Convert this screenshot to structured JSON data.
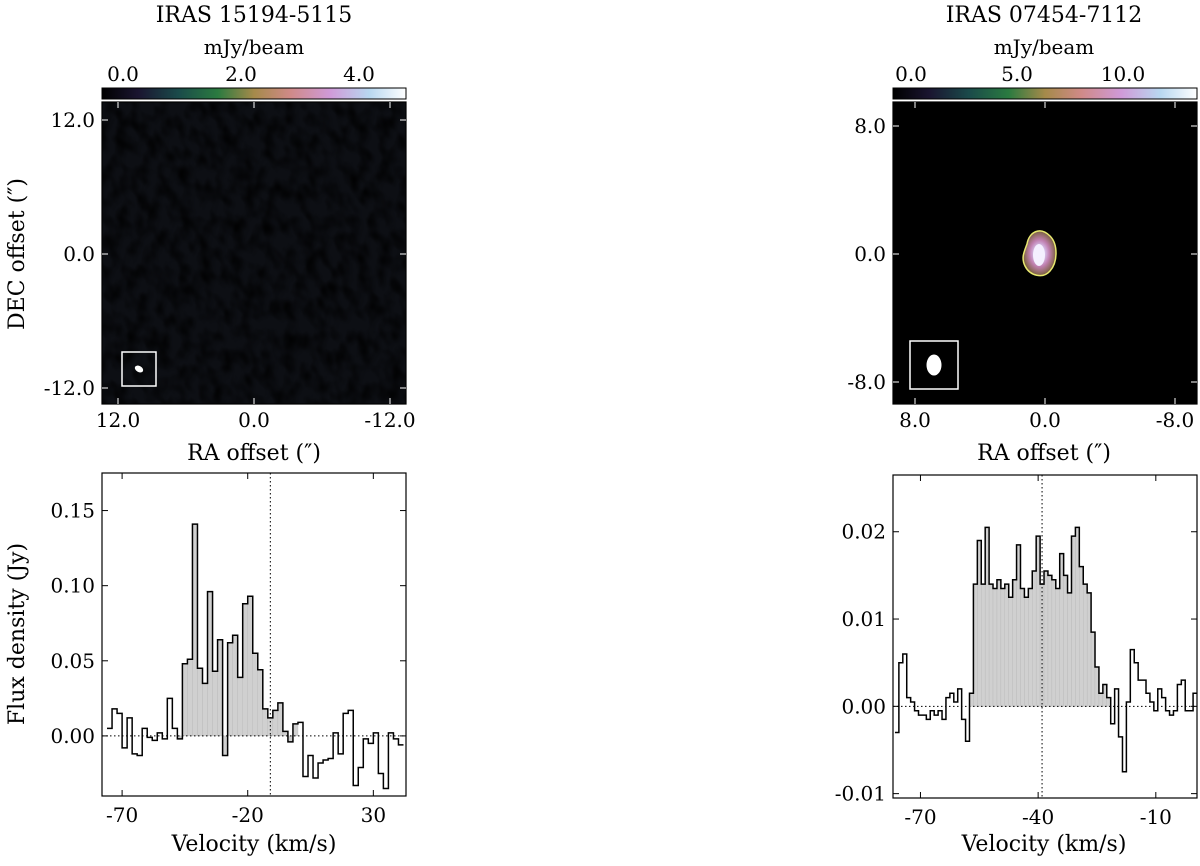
{
  "chart_data": [
    {
      "type": "heatmap",
      "title": "IRAS 15194-5115",
      "colorbar": {
        "label": "mJy/beam",
        "ticks": [
          "0.0",
          "2.0",
          "4.0"
        ],
        "range": [
          0,
          4.8
        ]
      },
      "xlabel": "RA offset (″)",
      "ylabel": "DEC offset (″)",
      "xticks": [
        "12.0",
        "0.0",
        "-12.0"
      ],
      "yticks": [
        "12.0",
        "0.0",
        "-12.0"
      ],
      "xlim": [
        13.5,
        -13.5
      ],
      "ylim": [
        -13.5,
        13.5
      ],
      "colormap": "cubehelix",
      "beam": "white ellipse in white box, bottom-left"
    },
    {
      "type": "heatmap",
      "title": "IRAS 07454-7112",
      "colorbar": {
        "label": "mJy/beam",
        "ticks": [
          "0.0",
          "5.0",
          "10.0"
        ],
        "range": [
          0,
          13.5
        ]
      },
      "xlabel": "RA offset (″)",
      "ylabel": "",
      "xticks": [
        "8.0",
        "0.0",
        "-8.0"
      ],
      "yticks": [
        "8.0",
        "0.0",
        "-8.0"
      ],
      "xlim": [
        9.5,
        -9.5
      ],
      "ylim": [
        -9.5,
        9.5
      ],
      "colormap": "cubehelix",
      "source": {
        "ra": 0.2,
        "dec": 0.0,
        "contour_color": "#e8e870"
      },
      "beam": "white ellipse in white box, bottom-left"
    },
    {
      "type": "line",
      "style": "step",
      "xlabel": "Velocity (km/s)",
      "ylabel": "Flux density (Jy)",
      "xticks": [
        "-70",
        "-20",
        "30"
      ],
      "yticks": [
        "0.00",
        "0.05",
        "0.10",
        "0.15"
      ],
      "xlim": [
        -78,
        43
      ],
      "ylim": [
        -0.04,
        0.175
      ],
      "vline": -11,
      "shade_range": [
        -47,
        -1
      ],
      "x": [
        -75,
        -73,
        -71,
        -69,
        -67,
        -65,
        -63,
        -61,
        -59,
        -57,
        -55,
        -53,
        -51,
        -49,
        -47,
        -45,
        -43,
        -41,
        -39,
        -37,
        -35,
        -33,
        -31,
        -29,
        -27,
        -25,
        -23,
        -21,
        -19,
        -17,
        -15,
        -13,
        -11,
        -9,
        -7,
        -5,
        -3,
        -1,
        1,
        3,
        5,
        7,
        9,
        11,
        13,
        15,
        17,
        19,
        21,
        23,
        25,
        27,
        29,
        31,
        33,
        35,
        37,
        39,
        41
      ],
      "y": [
        0.005,
        0.018,
        0.015,
        -0.008,
        0.012,
        -0.012,
        -0.013,
        0.005,
        -0.001,
        -0.003,
        0.002,
        -0.002,
        0.025,
        0.005,
        -0.002,
        0.048,
        0.051,
        0.141,
        0.045,
        0.035,
        0.096,
        0.043,
        0.064,
        -0.013,
        0.062,
        0.067,
        0.039,
        0.088,
        0.093,
        0.055,
        0.044,
        0.018,
        0.012,
        0.017,
        0.022,
        0.003,
        -0.004,
        0.008,
        0.009,
        -0.027,
        -0.013,
        -0.028,
        -0.018,
        -0.016,
        -0.015,
        0.002,
        -0.012,
        0.015,
        0.017,
        -0.033,
        -0.021,
        -0.002,
        -0.005,
        0.002,
        -0.025,
        -0.035,
        0.002,
        -0.002,
        -0.006
      ]
    },
    {
      "type": "line",
      "style": "step",
      "xlabel": "Velocity (km/s)",
      "ylabel": "",
      "xticks": [
        "-70",
        "-40",
        "-10"
      ],
      "yticks": [
        "-0.01",
        "0.00",
        "0.01",
        "0.02"
      ],
      "xlim": [
        -77,
        0.5
      ],
      "ylim": [
        -0.0105,
        0.0265
      ],
      "vline": -39,
      "shade_range": [
        -57,
        -22
      ],
      "x": [
        -76,
        -75,
        -74,
        -73,
        -72,
        -71,
        -70,
        -69,
        -68,
        -67,
        -66,
        -65,
        -64,
        -63,
        -62,
        -61,
        -60,
        -59,
        -58,
        -57,
        -56,
        -55,
        -54,
        -53,
        -52,
        -51,
        -50,
        -49,
        -48,
        -47,
        -46,
        -45,
        -44,
        -43,
        -42,
        -41,
        -40,
        -39,
        -38,
        -37,
        -36,
        -35,
        -34,
        -33,
        -32,
        -31,
        -30,
        -29,
        -28,
        -27,
        -26,
        -25,
        -24,
        -23,
        -22,
        -21,
        -20,
        -19,
        -18,
        -17,
        -16,
        -15,
        -14,
        -13,
        -12,
        -11,
        -10,
        -9,
        -8,
        -7,
        -6,
        -5,
        -4,
        -3,
        -2,
        -1,
        0
      ],
      "y": [
        -0.003,
        0.005,
        0.006,
        0.001,
        0.0005,
        -0.0005,
        -0.001,
        -0.001,
        -0.0015,
        -0.0005,
        -0.001,
        -0.0005,
        -0.0015,
        0.001,
        0.0015,
        0.0005,
        0.002,
        -0.0015,
        -0.004,
        0.0015,
        0.014,
        0.019,
        0.014,
        0.0205,
        0.014,
        0.0135,
        0.0145,
        0.0135,
        0.014,
        0.0125,
        0.0145,
        0.0185,
        0.0135,
        0.0125,
        0.0135,
        0.0155,
        0.0195,
        0.014,
        0.0155,
        0.015,
        0.0145,
        0.0135,
        0.0175,
        0.015,
        0.013,
        0.0195,
        0.0205,
        0.016,
        0.014,
        0.013,
        0.0085,
        0.0045,
        0.0015,
        0.0025,
        0.001,
        -0.002,
        0.002,
        -0.0035,
        -0.0075,
        0.0005,
        0.0065,
        0.005,
        0.003,
        0.003,
        0.0015,
        0.0005,
        -0.0005,
        0.002,
        0.001,
        -0.0005,
        -0.001,
        -0.0005,
        0.0025,
        0.003,
        -0.0005,
        -0.0005,
        0.0015
      ]
    }
  ]
}
